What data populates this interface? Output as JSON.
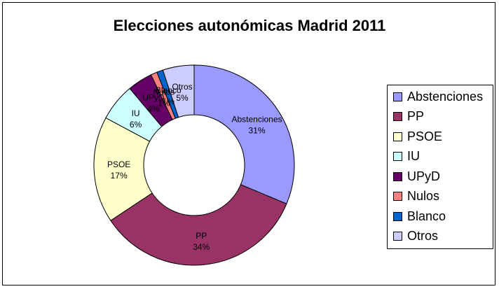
{
  "chart_data": {
    "type": "pie",
    "variant": "doughnut",
    "title": "Elecciones autonómicas Madrid 2011",
    "legend_position": "right",
    "slices": [
      {
        "label": "Abstenciones",
        "percent_label": "31%",
        "value": 31,
        "color": "#9999ff"
      },
      {
        "label": "PP",
        "percent_label": "34%",
        "value": 34,
        "color": "#993366"
      },
      {
        "label": "PSOE",
        "percent_label": "17%",
        "value": 17,
        "color": "#ffffcc"
      },
      {
        "label": "IU",
        "percent_label": "6%",
        "value": 6,
        "color": "#ccffff"
      },
      {
        "label": "UPyD",
        "percent_label": "4%",
        "value": 4,
        "color": "#660066"
      },
      {
        "label": "Nulos",
        "percent_label": "1%",
        "value": 1,
        "color": "#ff8080"
      },
      {
        "label": "Blanco",
        "percent_label": "1%",
        "value": 1,
        "color": "#0066cc"
      },
      {
        "label": "Otros",
        "percent_label": "5%",
        "value": 5,
        "color": "#ccccff"
      }
    ]
  }
}
